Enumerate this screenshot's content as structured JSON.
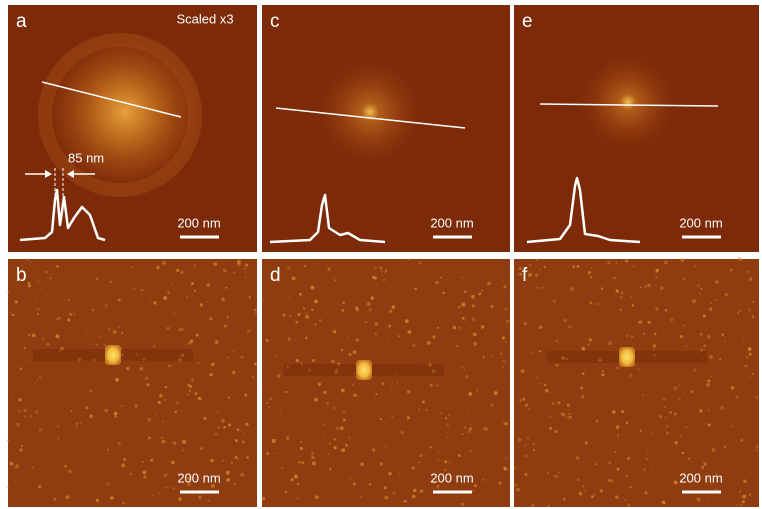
{
  "panels": [
    {
      "label": "a",
      "scale_bar": "200 nm",
      "scale_note": "Scaled x3",
      "distance_label": "85 nm"
    },
    {
      "label": "b",
      "scale_bar": "200 nm"
    },
    {
      "label": "c",
      "scale_bar": "200 nm"
    },
    {
      "label": "d",
      "scale_bar": "200 nm"
    },
    {
      "label": "e",
      "scale_bar": "200 nm"
    },
    {
      "label": "f",
      "scale_bar": "200 nm"
    }
  ]
}
